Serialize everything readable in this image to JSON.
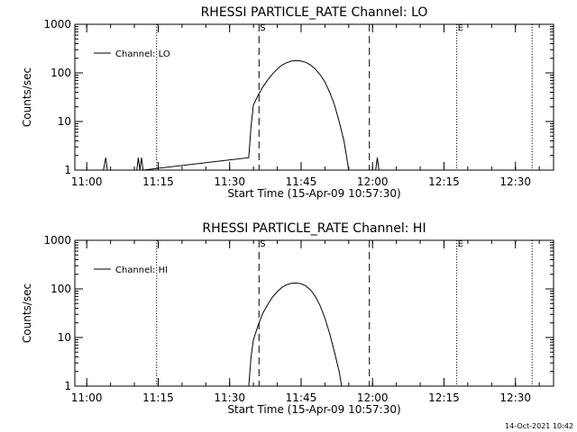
{
  "chart_data": [
    {
      "type": "line",
      "title": "RHESSI PARTICLE_RATE Channel: LO",
      "xlabel": "Start Time (15-Apr-09 10:57:30)",
      "ylabel": "Counts/sec",
      "yscale": "log",
      "xlim": [
        "10:57:30",
        "12:38:00"
      ],
      "ylim": [
        1,
        1000
      ],
      "xticks": [
        "11:00",
        "11:15",
        "11:30",
        "11:45",
        "12:00",
        "12:15",
        "12:30"
      ],
      "yticks": [
        "1",
        "10",
        "100",
        "1000"
      ],
      "legend": {
        "position": "top-left",
        "entries": [
          "Channel: LO"
        ]
      },
      "series": [
        {
          "name": "Channel: LO",
          "points": [
            [
              "11:03:30",
              1.0
            ],
            [
              "11:04:00",
              1.8
            ],
            [
              "11:04:20",
              1.0
            ],
            [
              "11:10:30",
              1.0
            ],
            [
              "11:10:50",
              1.8
            ],
            [
              "11:11:10",
              1.0
            ],
            [
              "11:11:30",
              1.8
            ],
            [
              "11:11:50",
              1.0
            ],
            [
              "11:34:00",
              1.8
            ],
            [
              "11:34:30",
              8
            ],
            [
              "11:35:00",
              22
            ],
            [
              "11:36:00",
              35
            ],
            [
              "11:37:00",
              52
            ],
            [
              "11:38:00",
              72
            ],
            [
              "11:39:00",
              95
            ],
            [
              "11:40:00",
              120
            ],
            [
              "11:41:00",
              145
            ],
            [
              "11:42:00",
              162
            ],
            [
              "11:43:00",
              175
            ],
            [
              "11:44:00",
              180
            ],
            [
              "11:45:00",
              175
            ],
            [
              "11:46:00",
              165
            ],
            [
              "11:47:00",
              145
            ],
            [
              "11:48:00",
              120
            ],
            [
              "11:49:00",
              92
            ],
            [
              "11:50:00",
              65
            ],
            [
              "11:51:00",
              40
            ],
            [
              "11:52:00",
              22
            ],
            [
              "11:53:00",
              10
            ],
            [
              "11:54:00",
              4
            ],
            [
              "11:54:30",
              2
            ],
            [
              "11:55:00",
              1.0
            ],
            [
              "12:00:40",
              1.0
            ],
            [
              "12:01:00",
              1.8
            ],
            [
              "12:01:20",
              1.0
            ]
          ]
        }
      ],
      "vlines": [
        {
          "x": "11:14:40",
          "style": "dotted",
          "label": ""
        },
        {
          "x": "11:36:10",
          "style": "dashed",
          "label": "S"
        },
        {
          "x": "11:59:20",
          "style": "dashed",
          "label": ""
        },
        {
          "x": "12:17:40",
          "style": "dotted",
          "label": "E"
        },
        {
          "x": "12:33:30",
          "style": "dotted",
          "label": ""
        }
      ]
    },
    {
      "type": "line",
      "title": "RHESSI PARTICLE_RATE Channel: HI",
      "xlabel": "Start Time (15-Apr-09 10:57:30)",
      "ylabel": "Counts/sec",
      "yscale": "log",
      "xlim": [
        "10:57:30",
        "12:38:00"
      ],
      "ylim": [
        1,
        1000
      ],
      "xticks": [
        "11:00",
        "11:15",
        "11:30",
        "11:45",
        "12:00",
        "12:15",
        "12:30"
      ],
      "yticks": [
        "1",
        "10",
        "100",
        "1000"
      ],
      "legend": {
        "position": "top-left",
        "entries": [
          "Channel: HI"
        ]
      },
      "series": [
        {
          "name": "Channel: HI",
          "points": [
            [
              "11:34:00",
              1.0
            ],
            [
              "11:34:30",
              4
            ],
            [
              "11:35:00",
              9
            ],
            [
              "11:36:00",
              18
            ],
            [
              "11:37:00",
              32
            ],
            [
              "11:38:00",
              48
            ],
            [
              "11:39:00",
              68
            ],
            [
              "11:40:00",
              88
            ],
            [
              "11:41:00",
              108
            ],
            [
              "11:42:00",
              122
            ],
            [
              "11:43:00",
              130
            ],
            [
              "11:44:00",
              132
            ],
            [
              "11:45:00",
              128
            ],
            [
              "11:46:00",
              115
            ],
            [
              "11:47:00",
              95
            ],
            [
              "11:48:00",
              70
            ],
            [
              "11:49:00",
              45
            ],
            [
              "11:50:00",
              25
            ],
            [
              "11:51:00",
              12
            ],
            [
              "11:52:00",
              5
            ],
            [
              "11:53:00",
              2
            ],
            [
              "11:53:30",
              1.0
            ]
          ]
        }
      ],
      "vlines": [
        {
          "x": "11:14:40",
          "style": "dotted",
          "label": ""
        },
        {
          "x": "11:36:10",
          "style": "dashed",
          "label": "S"
        },
        {
          "x": "11:59:20",
          "style": "dashed",
          "label": ""
        },
        {
          "x": "12:17:40",
          "style": "dotted",
          "label": "E"
        },
        {
          "x": "12:33:30",
          "style": "dotted",
          "label": ""
        }
      ]
    }
  ],
  "footer": {
    "timestamp": "14-Oct-2021 10:42"
  }
}
